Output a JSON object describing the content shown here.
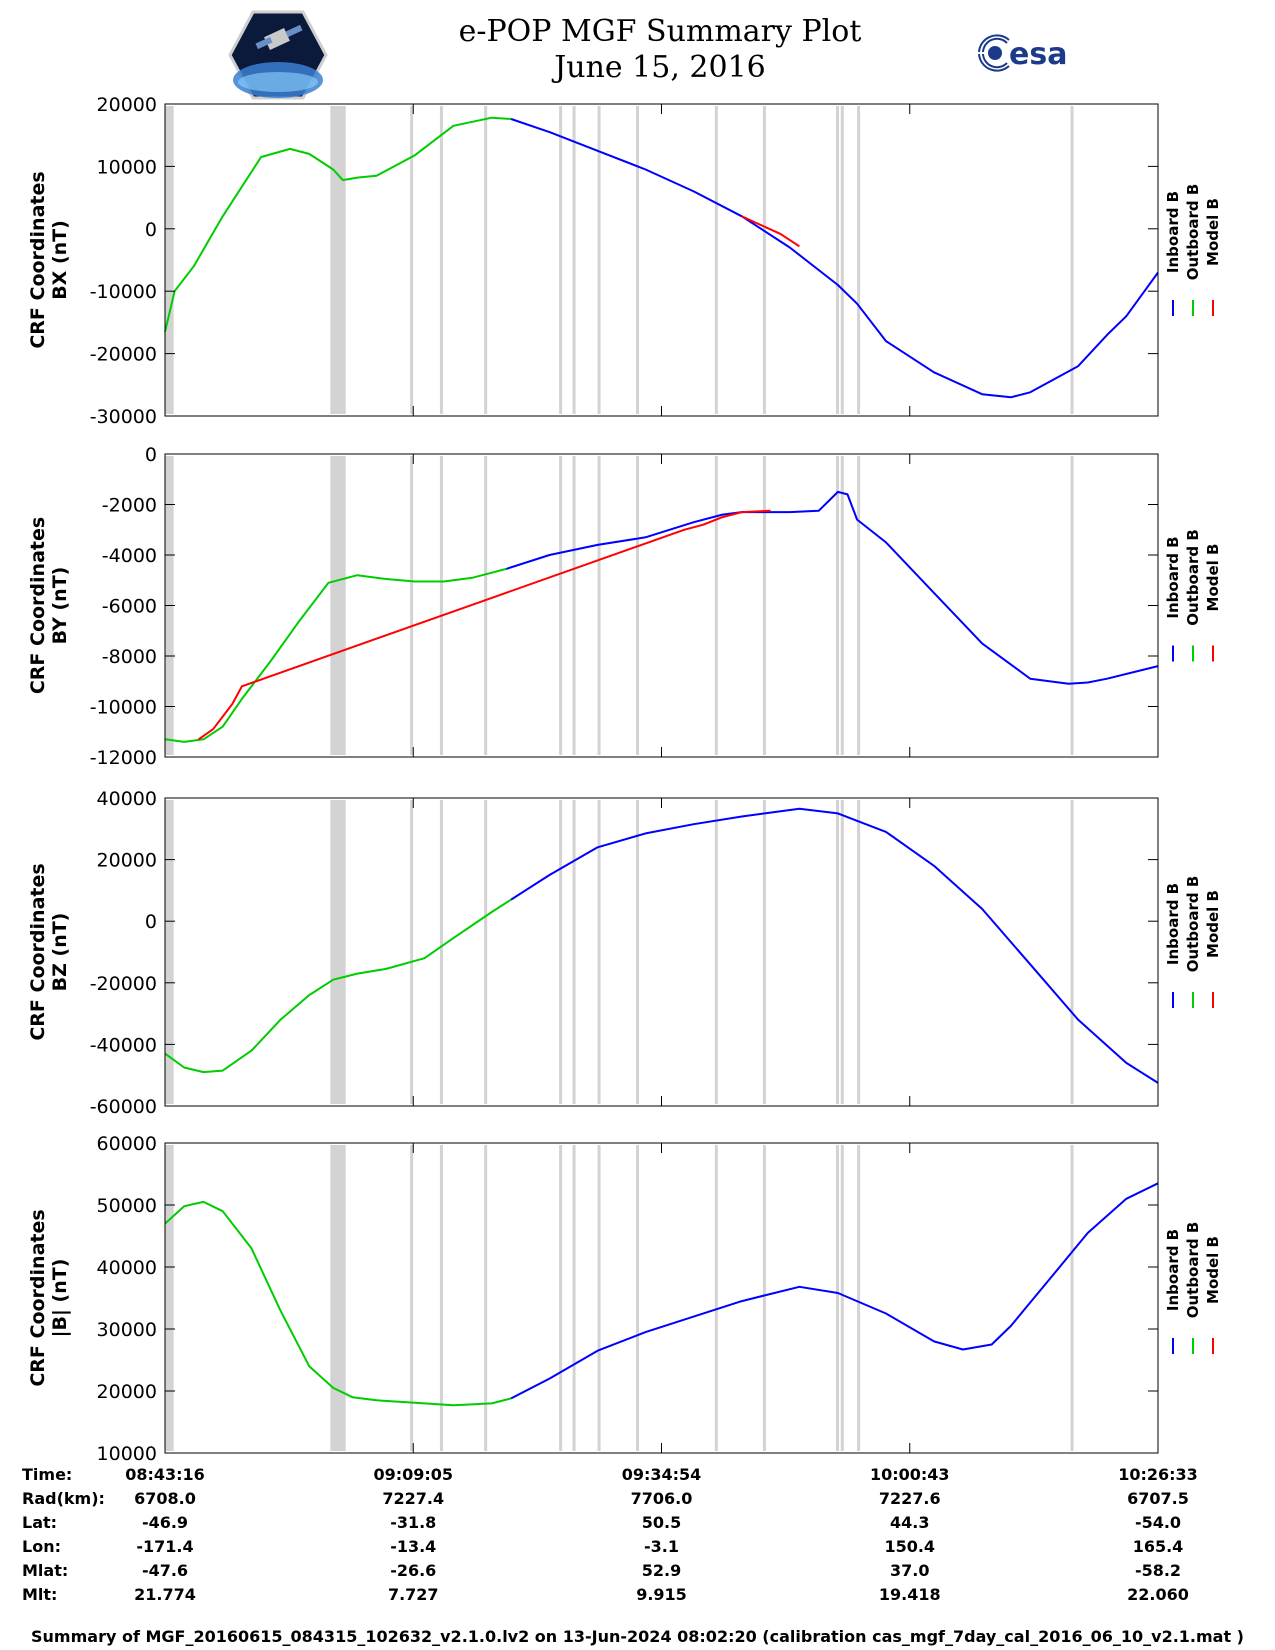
{
  "header": {
    "title": "e-POP MGF Summary Plot",
    "date": "June 15, 2016",
    "logo_left": "cassiope-mission-logo",
    "logo_right_text": "esa"
  },
  "colors": {
    "inboard": "#0000ff",
    "outboard": "#00cc00",
    "model": "#ff0000",
    "gap": "#d3d3d3"
  },
  "legend": [
    "Inboard B",
    "Outboard B",
    "Model B"
  ],
  "time_ticks": [
    "08:43:16",
    "09:09:05",
    "09:34:54",
    "10:00:43",
    "10:26:33"
  ],
  "orbit_table": {
    "row_labels": [
      "Time:",
      "Rad(km):",
      "Lat:",
      "Lon:",
      "Mlat:",
      "Mlt:"
    ],
    "columns": [
      [
        "08:43:16",
        "6708.0",
        "-46.9",
        "-171.4",
        "-47.6",
        "21.774"
      ],
      [
        "09:09:05",
        "7227.4",
        "-31.8",
        "-13.4",
        "-26.6",
        "7.727"
      ],
      [
        "09:34:54",
        "7706.0",
        "50.5",
        "-3.1",
        "52.9",
        "9.915"
      ],
      [
        "10:00:43",
        "7227.6",
        "44.3",
        "150.4",
        "37.0",
        "19.418"
      ],
      [
        "10:26:33",
        "6707.5",
        "-54.0",
        "165.4",
        "-58.2",
        "22.060"
      ]
    ]
  },
  "footer": "Summary of MGF_20160615_084315_102632_v2.1.0.lv2 on 13-Jun-2024 08:02:20 (calibration cas_mgf_7day_cal_2016_06_10_v2.1.mat )",
  "chart_data": [
    {
      "type": "line",
      "ylabel": [
        "CRF Coordinates",
        "BX (nT)"
      ],
      "ylim": [
        -30000,
        20000
      ],
      "yticks": [
        -30000,
        -20000,
        -10000,
        0,
        10000,
        20000
      ],
      "x_unit": "minutes from 08:43:16",
      "xlim": [
        0,
        103.3
      ],
      "gaps": [
        [
          0,
          0.9
        ],
        [
          17.2,
          18.8
        ],
        [
          25.5,
          25.7
        ],
        [
          28.6,
          28.8
        ],
        [
          33.2,
          33.4
        ],
        [
          41.0,
          41.2
        ],
        [
          42.4,
          42.6
        ],
        [
          45.0,
          45.2
        ],
        [
          49.0,
          49.2
        ],
        [
          57.2,
          57.4
        ],
        [
          62.2,
          62.4
        ],
        [
          69.8,
          70.0
        ],
        [
          70.3,
          70.5
        ],
        [
          72.0,
          72.2
        ],
        [
          94.2,
          94.4
        ]
      ],
      "series": [
        {
          "name": "Outboard B",
          "x": [
            0,
            1,
            3,
            6,
            10,
            13,
            15,
            17.5,
            18.5,
            20,
            22,
            26,
            30,
            34,
            36
          ],
          "values": [
            -16500,
            -10000,
            -6000,
            2000,
            11500,
            12800,
            12000,
            9500,
            7800,
            8200,
            8500,
            11800,
            16500,
            17800,
            17600
          ]
        },
        {
          "name": "Inboard B",
          "x": [
            36,
            40,
            45,
            50,
            55,
            60,
            65,
            70,
            72,
            75,
            80,
            85,
            88,
            90,
            95,
            98,
            100,
            103.3
          ],
          "values": [
            17600,
            15500,
            12500,
            9500,
            6000,
            2000,
            -3000,
            -9000,
            -12000,
            -18000,
            -23000,
            -26500,
            -27000,
            -26200,
            -22000,
            -17000,
            -14000,
            -7000
          ]
        },
        {
          "name": "Model B",
          "x": [
            60,
            62,
            64,
            66
          ],
          "values": [
            2000,
            600,
            -800,
            -2800
          ]
        }
      ]
    },
    {
      "type": "line",
      "ylabel": [
        "CRF Coordinates",
        "BY (nT)"
      ],
      "ylim": [
        -12000,
        0
      ],
      "yticks": [
        -12000,
        -10000,
        -8000,
        -6000,
        -4000,
        -2000,
        0
      ],
      "x_unit": "minutes from 08:43:16",
      "xlim": [
        0,
        103.3
      ],
      "gaps": [
        [
          0,
          0.9
        ],
        [
          17.2,
          18.8
        ],
        [
          25.5,
          25.7
        ],
        [
          28.6,
          28.8
        ],
        [
          33.2,
          33.4
        ],
        [
          41.0,
          41.2
        ],
        [
          42.4,
          42.6
        ],
        [
          45.0,
          45.2
        ],
        [
          49.0,
          49.2
        ],
        [
          57.2,
          57.4
        ],
        [
          62.2,
          62.4
        ],
        [
          69.8,
          70.0
        ],
        [
          70.3,
          70.5
        ],
        [
          72.0,
          72.2
        ],
        [
          94.2,
          94.4
        ]
      ],
      "series": [
        {
          "name": "Outboard B",
          "x": [
            0,
            2,
            4,
            6,
            8,
            11,
            14,
            17,
            20,
            23,
            26,
            29,
            32,
            34,
            35.5
          ],
          "values": [
            -11300,
            -11400,
            -11300,
            -10800,
            -9700,
            -8200,
            -6600,
            -5100,
            -4800,
            -4950,
            -5050,
            -5050,
            -4900,
            -4700,
            -4550
          ]
        },
        {
          "name": "Inboard B",
          "x": [
            35.5,
            40,
            45,
            50,
            55,
            58,
            60,
            65,
            68,
            70,
            71,
            72,
            75,
            80,
            85,
            90,
            94,
            96,
            98,
            103.3
          ],
          "values": [
            -4550,
            -4000,
            -3600,
            -3300,
            -2700,
            -2400,
            -2300,
            -2300,
            -2250,
            -1500,
            -1600,
            -2600,
            -3500,
            -5500,
            -7500,
            -8900,
            -9100,
            -9050,
            -8900,
            -8400
          ]
        },
        {
          "name": "Model B",
          "x": [
            3.5,
            5,
            7,
            8,
            54,
            56,
            58,
            60,
            63
          ],
          "values": [
            -11300,
            -10900,
            -9900,
            -9200,
            -3000,
            -2800,
            -2500,
            -2300,
            -2250
          ]
        }
      ]
    },
    {
      "type": "line",
      "ylabel": [
        "CRF Coordinates",
        "BZ (nT)"
      ],
      "ylim": [
        -60000,
        40000
      ],
      "yticks": [
        -60000,
        -40000,
        -20000,
        0,
        20000,
        40000
      ],
      "x_unit": "minutes from 08:43:16",
      "xlim": [
        0,
        103.3
      ],
      "gaps": [
        [
          0,
          0.9
        ],
        [
          17.2,
          18.8
        ],
        [
          25.5,
          25.7
        ],
        [
          28.6,
          28.8
        ],
        [
          33.2,
          33.4
        ],
        [
          41.0,
          41.2
        ],
        [
          42.4,
          42.6
        ],
        [
          45.0,
          45.2
        ],
        [
          49.0,
          49.2
        ],
        [
          57.2,
          57.4
        ],
        [
          62.2,
          62.4
        ],
        [
          69.8,
          70.0
        ],
        [
          70.3,
          70.5
        ],
        [
          72.0,
          72.2
        ],
        [
          94.2,
          94.4
        ]
      ],
      "series": [
        {
          "name": "Outboard B",
          "x": [
            0,
            2,
            4,
            6,
            9,
            12,
            15,
            17.5,
            20,
            23,
            27,
            30,
            34,
            36
          ],
          "values": [
            -43000,
            -47500,
            -49000,
            -48500,
            -42000,
            -32000,
            -24000,
            -19000,
            -17000,
            -15500,
            -12000,
            -5500,
            3000,
            7000
          ]
        },
        {
          "name": "Inboard B",
          "x": [
            36,
            40,
            45,
            50,
            55,
            60,
            66,
            70,
            75,
            80,
            85,
            90,
            95,
            100,
            103.3
          ],
          "values": [
            7000,
            15000,
            24000,
            28500,
            31500,
            34000,
            36500,
            35000,
            29000,
            18000,
            4000,
            -14000,
            -32000,
            -46000,
            -52500
          ]
        },
        {
          "name": "Model B",
          "x": [],
          "values": []
        }
      ]
    },
    {
      "type": "line",
      "ylabel": [
        "CRF Coordinates",
        "|B| (nT)"
      ],
      "ylim": [
        10000,
        60000
      ],
      "yticks": [
        10000,
        20000,
        30000,
        40000,
        50000,
        60000
      ],
      "x_unit": "minutes from 08:43:16",
      "xlim": [
        0,
        103.3
      ],
      "gaps": [
        [
          0,
          0.9
        ],
        [
          17.2,
          18.8
        ],
        [
          25.5,
          25.7
        ],
        [
          28.6,
          28.8
        ],
        [
          33.2,
          33.4
        ],
        [
          41.0,
          41.2
        ],
        [
          42.4,
          42.6
        ],
        [
          45.0,
          45.2
        ],
        [
          49.0,
          49.2
        ],
        [
          57.2,
          57.4
        ],
        [
          62.2,
          62.4
        ],
        [
          69.8,
          70.0
        ],
        [
          70.3,
          70.5
        ],
        [
          72.0,
          72.2
        ],
        [
          94.2,
          94.4
        ]
      ],
      "series": [
        {
          "name": "Outboard B",
          "x": [
            0,
            2,
            4,
            6,
            9,
            12,
            15,
            17.5,
            19.5,
            22,
            26,
            30,
            34,
            36
          ],
          "values": [
            47000,
            49800,
            50500,
            49000,
            43000,
            33000,
            24000,
            20500,
            19000,
            18500,
            18100,
            17700,
            18000,
            18800
          ]
        },
        {
          "name": "Inboard B",
          "x": [
            36,
            40,
            45,
            50,
            55,
            60,
            66,
            70,
            75,
            80,
            83,
            86,
            88,
            92,
            96,
            100,
            103.3
          ],
          "values": [
            18800,
            22000,
            26500,
            29500,
            32000,
            34500,
            36800,
            35800,
            32500,
            28000,
            26700,
            27500,
            30500,
            38000,
            45500,
            51000,
            53500
          ]
        },
        {
          "name": "Model B",
          "x": [],
          "values": []
        }
      ]
    }
  ]
}
